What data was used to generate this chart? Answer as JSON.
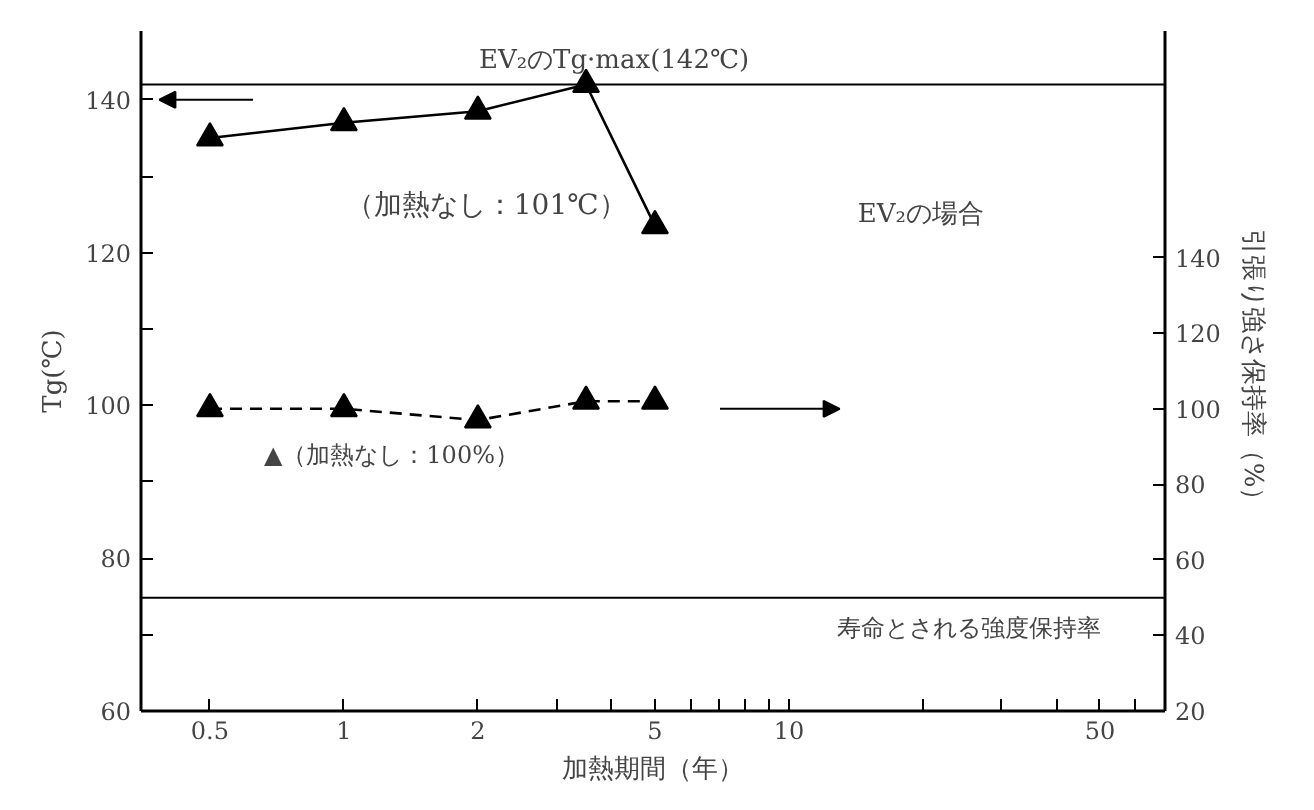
{
  "chart_data": {
    "type": "line",
    "xlabel": "加熱期間（年）",
    "ylabel": "Tg(℃)",
    "y2label": "引張り強さ保持率（%）",
    "log": "x",
    "grid": false,
    "marker": "triangle",
    "xlim": [
      0.35,
      70
    ],
    "xticks": [
      0.5,
      1,
      2,
      {
        "value": 3,
        "label": null
      },
      {
        "value": 4,
        "label": null
      },
      5,
      {
        "value": 6,
        "label": null
      },
      {
        "value": 7,
        "label": null
      },
      {
        "value": 8,
        "label": null
      },
      {
        "value": 9,
        "label": null
      },
      10,
      {
        "value": 20,
        "label": null
      },
      {
        "value": 30,
        "label": null
      },
      {
        "value": 40,
        "label": null
      },
      50,
      {
        "value": 60,
        "label": null
      }
    ],
    "ylim": [
      60,
      149
    ],
    "yticks": [
      60,
      {
        "value": 70,
        "label": null
      },
      80,
      {
        "value": 90,
        "label": null
      },
      100,
      {
        "value": 110,
        "label": null
      },
      120,
      {
        "value": 130,
        "label": null
      },
      140
    ],
    "y2lim": [
      20,
      200
    ],
    "y2ticks": [
      20,
      40,
      60,
      80,
      100,
      120,
      140
    ],
    "series": [
      {
        "color": "#000000",
        "x": [
          0.5,
          1,
          2,
          3.5,
          5
        ],
        "values": [
          135,
          137,
          138.5,
          142,
          123.5
        ],
        "line_style": "solid"
      },
      {
        "color": "#000000",
        "x": [
          0.5,
          1,
          2,
          3.5,
          5
        ],
        "values": [
          100,
          100,
          97,
          102,
          102
        ],
        "line_style": "dashed",
        "axis": "y2"
      }
    ],
    "ref_lines": [
      {
        "axis": "y",
        "value": 142,
        "label": "EV₂のTg·max(142℃)"
      },
      {
        "axis": "y2",
        "value": 50,
        "label": "寿命とされる強度保持率"
      }
    ],
    "annotations": [
      "（加熱なし：101℃）",
      "▲（加熱なし：100%）",
      "EV₂の場合"
    ]
  }
}
